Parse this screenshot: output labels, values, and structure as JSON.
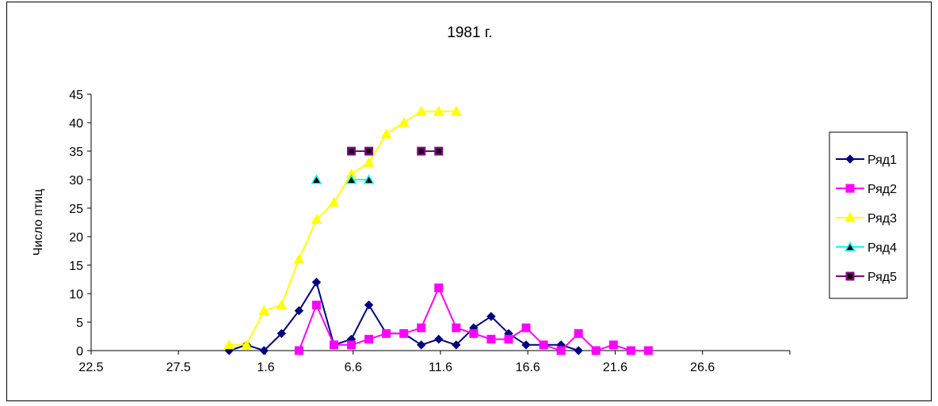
{
  "chart_data": {
    "type": "line",
    "title": "1981 г.",
    "xlabel": "",
    "ylabel": "Число птиц",
    "x_ticks": [
      "22.5",
      "27.5",
      "1.6",
      "6.6",
      "11.6",
      "16.6",
      "21.6",
      "26.6"
    ],
    "x_range_days": [
      0,
      40
    ],
    "ylim": [
      0,
      45
    ],
    "y_ticks": [
      0,
      5,
      10,
      15,
      20,
      25,
      30,
      35,
      40,
      45
    ],
    "grid": false,
    "legend_position": "right",
    "series": [
      {
        "name": "Ряд1",
        "color": "#000080",
        "marker": "diamond",
        "points": [
          [
            7.9,
            0
          ],
          [
            8.9,
            1
          ],
          [
            9.9,
            0
          ],
          [
            10.9,
            3
          ],
          [
            11.9,
            7
          ],
          [
            12.9,
            12
          ],
          [
            13.9,
            1
          ],
          [
            14.9,
            2
          ],
          [
            15.9,
            8
          ],
          [
            16.9,
            3
          ],
          [
            17.9,
            3
          ],
          [
            18.9,
            1
          ],
          [
            19.9,
            2
          ],
          [
            20.9,
            1
          ],
          [
            21.9,
            4
          ],
          [
            22.9,
            6
          ],
          [
            23.9,
            3
          ],
          [
            24.9,
            1
          ],
          [
            25.9,
            1
          ],
          [
            26.9,
            1
          ],
          [
            27.9,
            0
          ]
        ]
      },
      {
        "name": "Ряд2",
        "color": "#FF00FF",
        "marker": "square",
        "points": [
          [
            11.9,
            0
          ],
          [
            12.9,
            8
          ],
          [
            13.9,
            1
          ],
          [
            14.9,
            1
          ],
          [
            15.9,
            2
          ],
          [
            16.9,
            3
          ],
          [
            17.9,
            3
          ],
          [
            18.9,
            4
          ],
          [
            19.9,
            11
          ],
          [
            20.9,
            4
          ],
          [
            21.9,
            3
          ],
          [
            22.9,
            2
          ],
          [
            23.9,
            2
          ],
          [
            24.9,
            4
          ],
          [
            25.9,
            1
          ],
          [
            26.9,
            0
          ],
          [
            27.9,
            3
          ],
          [
            28.9,
            0
          ],
          [
            29.9,
            1
          ],
          [
            30.9,
            0
          ],
          [
            31.9,
            0
          ]
        ]
      },
      {
        "name": "Ряд3",
        "color": "#FFFF00",
        "marker": "triangle",
        "points": [
          [
            7.9,
            1
          ],
          [
            8.9,
            1
          ],
          [
            9.9,
            7
          ],
          [
            10.9,
            8
          ],
          [
            11.9,
            16
          ],
          [
            12.9,
            23
          ],
          [
            13.9,
            26
          ],
          [
            14.9,
            31
          ],
          [
            15.9,
            33
          ],
          [
            16.9,
            38
          ],
          [
            17.9,
            40
          ],
          [
            18.9,
            42
          ],
          [
            19.9,
            42
          ],
          [
            20.9,
            42
          ]
        ]
      },
      {
        "name": "Ряд4",
        "color": "#00FFFF",
        "marker": "triangle-dark",
        "segments": [
          [
            [
              12.9,
              30
            ]
          ],
          [
            [
              14.9,
              30
            ],
            [
              15.9,
              30
            ]
          ]
        ]
      },
      {
        "name": "Ряд5",
        "color": "#800080",
        "marker": "square-dark",
        "segments": [
          [
            [
              14.9,
              35
            ],
            [
              15.9,
              35
            ]
          ],
          [
            [
              18.9,
              35
            ],
            [
              19.9,
              35
            ]
          ]
        ]
      }
    ]
  }
}
